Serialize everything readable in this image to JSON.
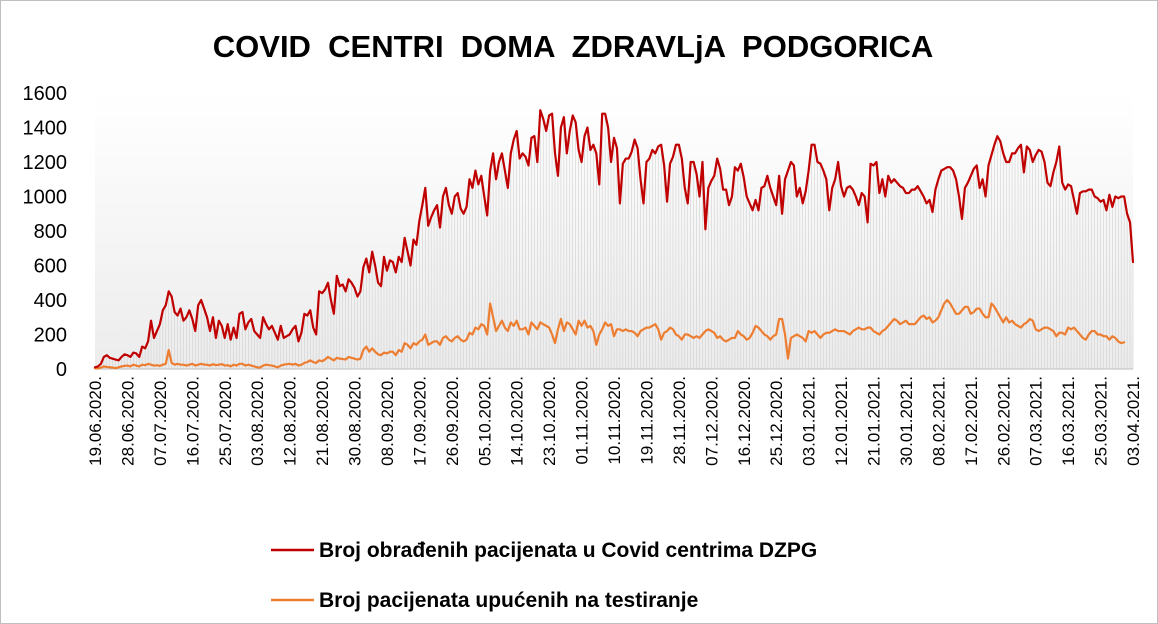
{
  "chart_data": {
    "type": "line",
    "title": "COVID  CENTRI  DOMA  ZDRAVLjA  PODGORICA",
    "xlabel": "",
    "ylabel": "",
    "ylim": [
      0,
      1600
    ],
    "yticks": [
      0,
      200,
      400,
      600,
      800,
      1000,
      1200,
      1400,
      1600
    ],
    "xticks": [
      "19.06.2020.",
      "28.06.2020.",
      "07.07.2020.",
      "16.07.2020.",
      "25.07.2020.",
      "03.08.2020.",
      "12.08.2020.",
      "21.08.2020.",
      "30.08.2020.",
      "08.09.2020.",
      "17.09.2020.",
      "26.09.2020.",
      "05.10.2020.",
      "14.10.2020.",
      "23.10.2020.",
      "01.11.2020.",
      "10.11.2020.",
      "19.11.2020.",
      "28.11.2020.",
      "07.12.2020.",
      "16.12.2020.",
      "25.12.2020.",
      "03.01.2021.",
      "12.01.2021.",
      "21.01.2021.",
      "30.01.2021.",
      "08.02.2021.",
      "17.02.2021.",
      "26.02.2021.",
      "07.03.2021.",
      "16.03.2021.",
      "25.03.2021.",
      "03.04.2021."
    ],
    "grid": "vertical dropline per day",
    "legend_position": "bottom",
    "series": [
      {
        "name": "Broj obrađenih pacijenata u Covid centrima DZPG",
        "color": "#c00000",
        "values": [
          10,
          15,
          30,
          70,
          80,
          65,
          60,
          55,
          50,
          70,
          85,
          80,
          70,
          95,
          90,
          70,
          130,
          120,
          160,
          280,
          180,
          220,
          260,
          340,
          370,
          450,
          420,
          330,
          310,
          350,
          280,
          300,
          340,
          290,
          220,
          370,
          400,
          350,
          300,
          220,
          300,
          180,
          280,
          250,
          180,
          260,
          170,
          240,
          180,
          320,
          330,
          230,
          270,
          290,
          220,
          200,
          180,
          300,
          260,
          230,
          250,
          210,
          170,
          250,
          180,
          190,
          200,
          230,
          250,
          160,
          210,
          320,
          310,
          340,
          240,
          200,
          450,
          440,
          460,
          500,
          400,
          320,
          540,
          480,
          490,
          450,
          520,
          500,
          470,
          420,
          450,
          590,
          640,
          560,
          680,
          600,
          500,
          480,
          650,
          570,
          630,
          620,
          560,
          650,
          620,
          760,
          680,
          600,
          750,
          720,
          860,
          950,
          1050,
          830,
          880,
          920,
          950,
          820,
          1000,
          1050,
          950,
          900,
          1000,
          1020,
          930,
          900,
          940,
          1100,
          1050,
          1150,
          1070,
          1120,
          1000,
          890,
          1150,
          1250,
          1100,
          1200,
          1250,
          1150,
          1050,
          1250,
          1330,
          1380,
          1220,
          1250,
          1230,
          1180,
          1340,
          1350,
          1200,
          1500,
          1450,
          1380,
          1470,
          1480,
          1250,
          1120,
          1400,
          1460,
          1250,
          1380,
          1470,
          1430,
          1270,
          1200,
          1350,
          1400,
          1270,
          1300,
          1250,
          1070,
          1480,
          1480,
          1400,
          1200,
          1340,
          1280,
          960,
          1190,
          1220,
          1220,
          1260,
          1330,
          1280,
          1100,
          960,
          1200,
          1220,
          1270,
          1250,
          1290,
          1300,
          1180,
          970,
          1190,
          1230,
          1300,
          1300,
          1220,
          1050,
          960,
          1200,
          1200,
          1130,
          1000,
          1200,
          810,
          1050,
          1090,
          1120,
          1220,
          1160,
          1040,
          1040,
          950,
          1000,
          1170,
          1150,
          1190,
          1110,
          1000,
          960,
          920,
          980,
          920,
          1050,
          1060,
          1120,
          1050,
          1000,
          950,
          1120,
          900,
          1100,
          1150,
          1200,
          1180,
          1000,
          1050,
          960,
          1030,
          1150,
          1300,
          1300,
          1200,
          1190,
          1150,
          1100,
          920,
          1050,
          1100,
          1200,
          1060,
          1000,
          1050,
          1060,
          1040,
          1000,
          950,
          1020,
          1000,
          850,
          1190,
          1180,
          1200,
          1020,
          1100,
          1000,
          1120,
          1080,
          1100,
          1080,
          1060,
          1050,
          1020,
          1020,
          1040,
          1040,
          1060,
          1030,
          1000,
          960,
          980,
          910,
          1040,
          1100,
          1150,
          1160,
          1170,
          1170,
          1150,
          1100,
          1000,
          870,
          1050,
          1080,
          1120,
          1160,
          1180,
          1050,
          1100,
          1000,
          1180,
          1240,
          1300,
          1350,
          1320,
          1250,
          1200,
          1200,
          1250,
          1250,
          1280,
          1300,
          1140,
          1290,
          1270,
          1200,
          1240,
          1270,
          1260,
          1200,
          1080,
          1060,
          1140,
          1200,
          1290,
          1080,
          1040,
          1070,
          1060,
          980,
          900,
          1020,
          1030,
          1030,
          1040,
          1040,
          1000,
          990,
          970,
          980,
          920,
          1010,
          940,
          1000,
          990,
          1000,
          1000,
          900,
          850,
          620
        ]
      },
      {
        "name": "Broj pacijenata upućenih na testiranje",
        "color": "#ed7d31",
        "values": [
          5,
          3,
          8,
          15,
          12,
          10,
          8,
          5,
          10,
          15,
          18,
          20,
          15,
          25,
          20,
          15,
          25,
          22,
          30,
          25,
          20,
          22,
          18,
          25,
          30,
          110,
          35,
          25,
          30,
          25,
          25,
          20,
          25,
          30,
          20,
          25,
          30,
          25,
          25,
          20,
          28,
          22,
          25,
          28,
          20,
          22,
          15,
          25,
          20,
          30,
          30,
          20,
          25,
          20,
          15,
          10,
          8,
          20,
          25,
          22,
          20,
          15,
          10,
          20,
          25,
          28,
          30,
          25,
          30,
          20,
          25,
          35,
          40,
          50,
          40,
          35,
          50,
          45,
          55,
          70,
          60,
          50,
          65,
          60,
          58,
          55,
          70,
          65,
          60,
          55,
          60,
          110,
          130,
          100,
          120,
          100,
          85,
          80,
          95,
          90,
          100,
          100,
          80,
          110,
          100,
          150,
          140,
          120,
          150,
          140,
          160,
          170,
          200,
          140,
          150,
          160,
          160,
          140,
          180,
          190,
          170,
          160,
          180,
          190,
          170,
          160,
          170,
          210,
          200,
          240,
          230,
          260,
          250,
          200,
          380,
          300,
          220,
          250,
          280,
          240,
          220,
          270,
          250,
          280,
          230,
          230,
          240,
          200,
          270,
          250,
          230,
          270,
          260,
          250,
          240,
          200,
          150,
          230,
          290,
          220,
          270,
          260,
          230,
          200,
          280,
          250,
          280,
          240,
          250,
          220,
          140,
          200,
          230,
          270,
          250,
          260,
          190,
          230,
          230,
          220,
          230,
          220,
          220,
          210,
          190,
          220,
          230,
          240,
          240,
          250,
          260,
          230,
          170,
          210,
          220,
          240,
          230,
          200,
          190,
          170,
          200,
          200,
          190,
          180,
          190,
          180,
          200,
          220,
          230,
          220,
          210,
          180,
          190,
          170,
          160,
          170,
          180,
          180,
          220,
          200,
          190,
          170,
          180,
          210,
          250,
          240,
          220,
          200,
          190,
          170,
          190,
          200,
          290,
          290,
          200,
          60,
          180,
          190,
          200,
          190,
          180,
          160,
          220,
          210,
          220,
          200,
          180,
          200,
          210,
          210,
          220,
          230,
          220,
          220,
          220,
          210,
          200,
          220,
          230,
          240,
          230,
          230,
          240,
          240,
          220,
          210,
          200,
          220,
          230,
          250,
          270,
          290,
          280,
          260,
          270,
          280,
          260,
          260,
          260,
          280,
          300,
          310,
          290,
          300,
          270,
          280,
          300,
          340,
          380,
          400,
          380,
          350,
          320,
          320,
          340,
          360,
          360,
          320,
          330,
          350,
          350,
          320,
          300,
          300,
          380,
          360,
          330,
          300,
          270,
          300,
          270,
          280,
          260,
          250,
          240,
          260,
          270,
          290,
          280,
          230,
          220,
          230,
          240,
          240,
          230,
          220,
          190,
          210,
          210,
          200,
          240,
          230,
          240,
          220,
          200,
          180,
          170,
          200,
          220,
          220,
          200,
          200,
          190,
          190,
          170,
          190,
          180,
          160,
          150,
          155
        ]
      }
    ]
  }
}
